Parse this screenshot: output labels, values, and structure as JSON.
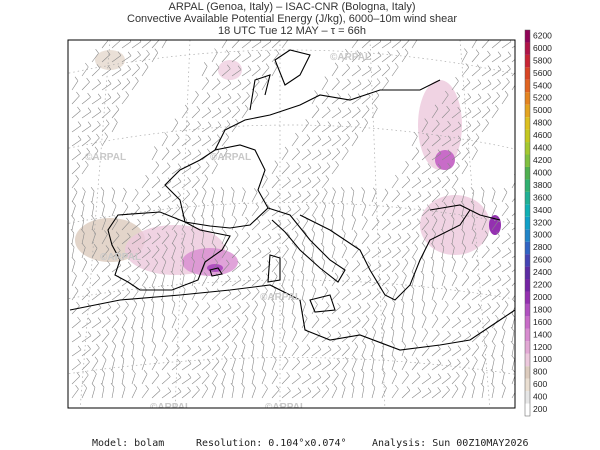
{
  "header": {
    "line1": "ARPAL (Genoa, Italy)  –  ISAC-CNR (Bologna, Italy)",
    "line2": "Convective Available Potential Energy (J/kg), 6000–10m wind shear",
    "line3": "18 UTC Tue 12 MAY  –  τ = 66h"
  },
  "watermark": "©ARPAL",
  "colorbar": {
    "labels": [
      200,
      400,
      600,
      800,
      1000,
      1200,
      1400,
      1600,
      1800,
      2000,
      2200,
      2400,
      2600,
      2800,
      3000,
      3200,
      3400,
      3600,
      3800,
      4000,
      4200,
      4400,
      4600,
      4800,
      5000,
      5200,
      5400,
      5600,
      5800,
      6000,
      6200
    ],
    "colors": [
      "#ffffff",
      "#e6e6e6",
      "#eadfd2",
      "#dccbbd",
      "#ecc8dc",
      "#e2a8d4",
      "#d88cd0",
      "#c86cc8",
      "#b050c0",
      "#9430b0",
      "#7424a4",
      "#5c2ca4",
      "#4444b4",
      "#3064c4",
      "#2084c8",
      "#10a0c8",
      "#10b0b4",
      "#20b094",
      "#30b070",
      "#50b050",
      "#80c040",
      "#a4c830",
      "#c4c820",
      "#dcc020",
      "#e4a420",
      "#e48420",
      "#e06420",
      "#d84424",
      "#c82434",
      "#b01448",
      "#900458"
    ]
  },
  "footer": {
    "model": "Model: bolam",
    "resolution": "Resolution: 0.104°x0.074°",
    "analysis": "Analysis: Sun 00Z10MAY2026"
  }
}
